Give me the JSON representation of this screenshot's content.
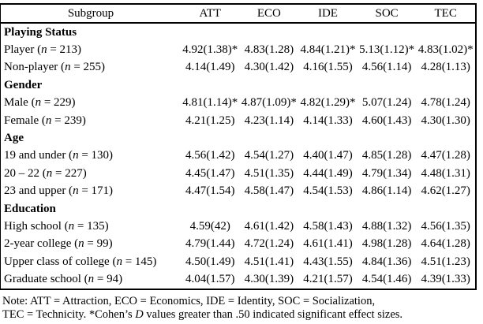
{
  "colors": {
    "text": "#000000",
    "background": "#ffffff",
    "border": "#000000"
  },
  "table": {
    "columns": [
      "Subgroup",
      "ATT",
      "ECO",
      "IDE",
      "SOC",
      "TEC"
    ],
    "groups": [
      {
        "title": "Playing Status",
        "rows": [
          {
            "pre": "Player (",
            "n": "n",
            "post": " = 213)",
            "values": [
              "4.92(1.38)*",
              "4.83(1.28)",
              "4.84(1.21)*",
              "5.13(1.12)*",
              "4.83(1.02)*"
            ]
          },
          {
            "pre": "Non-player (",
            "n": "n",
            "post": " = 255)",
            "values": [
              "4.14(1.49)",
              "4.30(1.42)",
              "4.16(1.55)",
              "4.56(1.14)",
              "4.28(1.13)"
            ]
          }
        ]
      },
      {
        "title": "Gender",
        "rows": [
          {
            "pre": "Male (",
            "n": "n",
            "post": " = 229)",
            "values": [
              "4.81(1.14)*",
              "4.87(1.09)*",
              "4.82(1.29)*",
              "5.07(1.24)",
              "4.78(1.24)"
            ]
          },
          {
            "pre": "Female (",
            "n": "n",
            "post": " = 239)",
            "values": [
              "4.21(1.25)",
              "4.23(1.14)",
              "4.14(1.33)",
              "4.60(1.43)",
              "4.30(1.30)"
            ]
          }
        ]
      },
      {
        "title": "Age",
        "rows": [
          {
            "pre": "19 and under (",
            "n": "n",
            "post": " = 130)",
            "values": [
              "4.56(1.42)",
              "4.54(1.27)",
              "4.40(1.47)",
              "4.85(1.28)",
              "4.47(1.28)"
            ]
          },
          {
            "pre": "20 – 22 (",
            "n": "n",
            "post": " = 227)",
            "values": [
              "4.45(1.47)",
              "4.51(1.35)",
              "4.44(1.49)",
              "4.79(1.34)",
              "4.48(1.31)"
            ]
          },
          {
            "pre": "23 and upper (",
            "n": "n",
            "post": " = 171)",
            "values": [
              "4.47(1.54)",
              "4.58(1.47)",
              "4.54(1.53)",
              "4.86(1.14)",
              "4.62(1.27)"
            ]
          }
        ]
      },
      {
        "title": "Education",
        "rows": [
          {
            "pre": "High school (",
            "n": "n",
            "post": " = 135)",
            "values": [
              "4.59(42)",
              "4.61(1.42)",
              "4.58(1.43)",
              "4.88(1.32)",
              "4.56(1.35)"
            ]
          },
          {
            "pre": "2-year college (",
            "n": "n",
            "post": " = 99)",
            "values": [
              "4.79(1.44)",
              "4.72(1.24)",
              "4.61(1.41)",
              "4.98(1.28)",
              "4.64(1.28)"
            ]
          },
          {
            "pre": "Upper class of college (",
            "n": "n",
            "post": " = 145)",
            "values": [
              "4.50(1.49)",
              "4.51(1.41)",
              "4.43(1.55)",
              "4.84(1.36)",
              "4.51(1.23)"
            ]
          },
          {
            "pre": "Graduate school (",
            "n": "n",
            "post": " = 94)",
            "values": [
              "4.04(1.57)",
              "4.30(1.39)",
              "4.21(1.57)",
              "4.54(1.46)",
              "4.39(1.33)"
            ]
          }
        ]
      }
    ]
  },
  "note": {
    "line1": "Note: ATT = Attraction, ECO = Economics, IDE = Identity, SOC = Socialization,",
    "line2_pre": "TEC = Technicity. *Cohen’s ",
    "line2_d": "D",
    "line2_post": " values greater than .50 indicated significant effect sizes."
  }
}
